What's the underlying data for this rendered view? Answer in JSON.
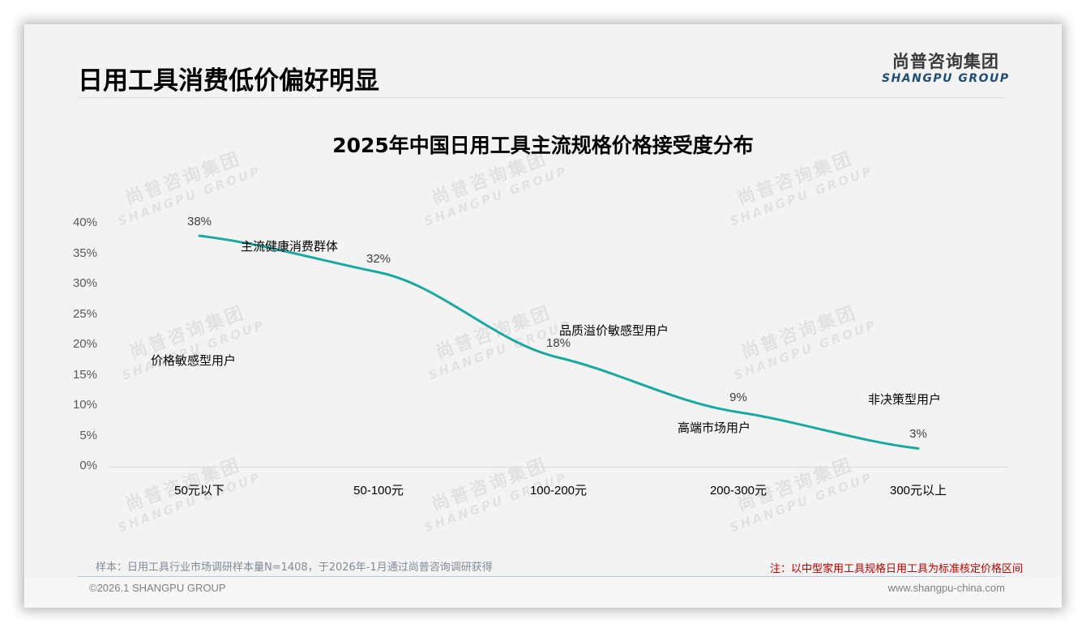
{
  "header": {
    "title": "日用工具消费低价偏好明显",
    "logo_cn": "尚普咨询集团",
    "logo_en": "SHANGPU GROUP"
  },
  "watermark": {
    "cn": "尚普咨询集团",
    "en": "SHANGPU GROUP"
  },
  "colors": {
    "line": "#1aa9a0",
    "note": "#c00000",
    "logo_en": "#1f4e79"
  },
  "chart_data": {
    "type": "line",
    "title": "2025年中国日用工具主流规格价格接受度分布",
    "xlabel": "",
    "ylabel": "",
    "categories": [
      "50元以下",
      "50-100元",
      "100-200元",
      "200-300元",
      "300元以上"
    ],
    "values": [
      38,
      32,
      18,
      9,
      3
    ],
    "value_labels": [
      "38%",
      "32%",
      "18%",
      "9%",
      "3%"
    ],
    "series": [
      {
        "name": "价格接受度",
        "values": [
          38,
          32,
          18,
          9,
          3
        ]
      }
    ],
    "ylim": [
      0,
      40
    ],
    "yticks": [
      "0%",
      "5%",
      "10%",
      "15%",
      "20%",
      "25%",
      "30%",
      "35%",
      "40%"
    ],
    "grid": false,
    "legend": "none",
    "annotations": [
      {
        "text": "价格敏感型用户",
        "near": "50元以下"
      },
      {
        "text": "主流健康消费群体",
        "near": "50-100元"
      },
      {
        "text": "品质溢价敏感型用户",
        "near": "100-200元"
      },
      {
        "text": "高端市场用户",
        "near": "200-300元"
      },
      {
        "text": "非决策型用户",
        "near": "300元以上"
      }
    ]
  },
  "footer": {
    "sample_note": "样本：日用工具行业市场调研样本量N=1408，于2026年-1月通过尚普咨询调研获得",
    "note": "注：以中型家用工具规格日用工具为标准核定价格区间",
    "copyright": "©2026.1 SHANGPU GROUP",
    "website": "www.shangpu-china.com"
  }
}
